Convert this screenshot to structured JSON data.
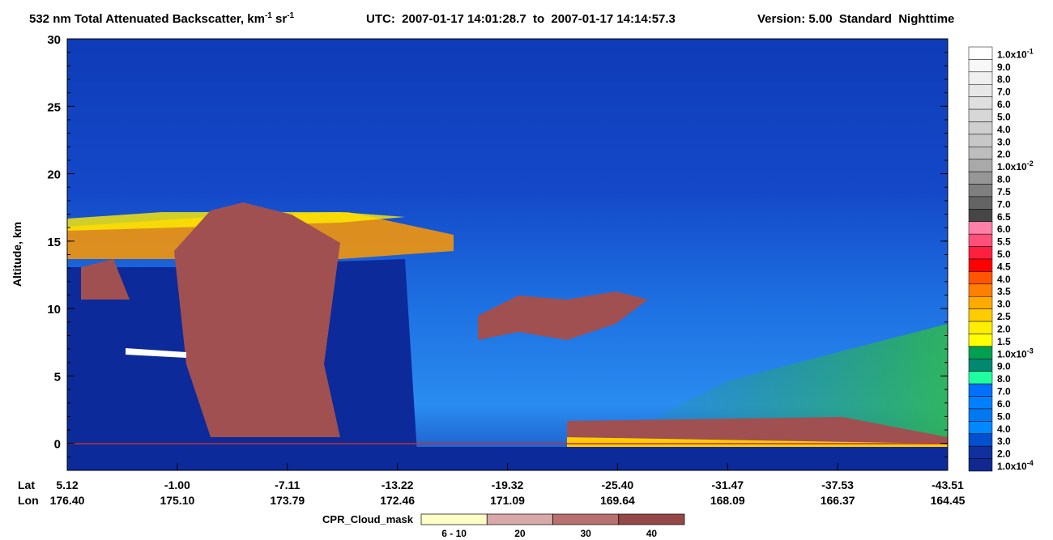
{
  "chart_data": {
    "type": "curtain",
    "title": {
      "text": "532 nm Total Attenuated Backscatter, km",
      "unit_exp": "-1",
      "unit2": " sr",
      "unit2_exp": "-1"
    },
    "time_range": "UTC:  2007-01-17 14:01:28.7  to  2007-01-17 14:14:57.3",
    "version": "Version: 5.00  Standard  Nighttime",
    "y_label": "Altitude, km",
    "ylim": [
      -2,
      30
    ],
    "yticks": [
      0,
      5,
      10,
      15,
      20,
      25,
      30
    ],
    "x_axis": {
      "lat_label": "Lat",
      "lon_label": "Lon",
      "lat": [
        "5.12",
        "-1.00",
        "-7.11",
        "-13.22",
        "-19.32",
        "-25.40",
        "-31.47",
        "-37.53",
        "-43.51"
      ],
      "lon": [
        "176.40",
        "175.10",
        "173.79",
        "172.46",
        "171.09",
        "169.64",
        "168.09",
        "166.37",
        "164.45"
      ]
    },
    "colorbar": [
      {
        "label": "1.0x10",
        "exp": "-1",
        "color": "#ffffff"
      },
      {
        "label": "9.0",
        "color": "#f7f7f7"
      },
      {
        "label": "8.0",
        "color": "#efefef"
      },
      {
        "label": "7.0",
        "color": "#e7e7e7"
      },
      {
        "label": "6.0",
        "color": "#dfdfdf"
      },
      {
        "label": "5.0",
        "color": "#d7d7d7"
      },
      {
        "label": "4.0",
        "color": "#cfcfcf"
      },
      {
        "label": "3.0",
        "color": "#c7c7c7"
      },
      {
        "label": "2.0",
        "color": "#bdbdbd"
      },
      {
        "label": "1.0x10",
        "exp": "-2",
        "color": "#a9a9a9"
      },
      {
        "label": "8.0",
        "color": "#969696"
      },
      {
        "label": "7.5",
        "color": "#7f7f7f"
      },
      {
        "label": "7.0",
        "color": "#646464"
      },
      {
        "label": "6.5",
        "color": "#464646"
      },
      {
        "label": "6.0",
        "color": "#ff80a8"
      },
      {
        "label": "5.5",
        "color": "#ff5078"
      },
      {
        "label": "5.0",
        "color": "#ff2040"
      },
      {
        "label": "4.5",
        "color": "#ff0000"
      },
      {
        "label": "4.0",
        "color": "#ff5500"
      },
      {
        "label": "3.5",
        "color": "#ff7f00"
      },
      {
        "label": "3.0",
        "color": "#ffaa00"
      },
      {
        "label": "2.5",
        "color": "#ffcc00"
      },
      {
        "label": "2.0",
        "color": "#ffee00"
      },
      {
        "label": "1.5",
        "color": "#ffff00"
      },
      {
        "label": "1.0x10",
        "exp": "-3",
        "color": "#00a050"
      },
      {
        "label": "9.0",
        "color": "#008870"
      },
      {
        "label": "8.0",
        "color": "#20ffa0"
      },
      {
        "label": "7.0",
        "color": "#0070ff"
      },
      {
        "label": "6.0",
        "color": "#0080ff"
      },
      {
        "label": "5.0",
        "color": "#0078f0"
      },
      {
        "label": "4.0",
        "color": "#0088ff"
      },
      {
        "label": "3.0",
        "color": "#0050d0"
      },
      {
        "label": "2.0",
        "color": "#1030a0"
      },
      {
        "label": "1.0x10",
        "exp": "-4",
        "color": "#102890"
      }
    ],
    "cpr_legend": {
      "title": "CPR_Cloud_mask",
      "items": [
        {
          "label": "6 - 10",
          "color": "#ffffc8"
        },
        {
          "label": "20",
          "color": "#d9a8a8"
        },
        {
          "label": "30",
          "color": "#b87070"
        },
        {
          "label": "40",
          "color": "#944848"
        }
      ]
    }
  }
}
